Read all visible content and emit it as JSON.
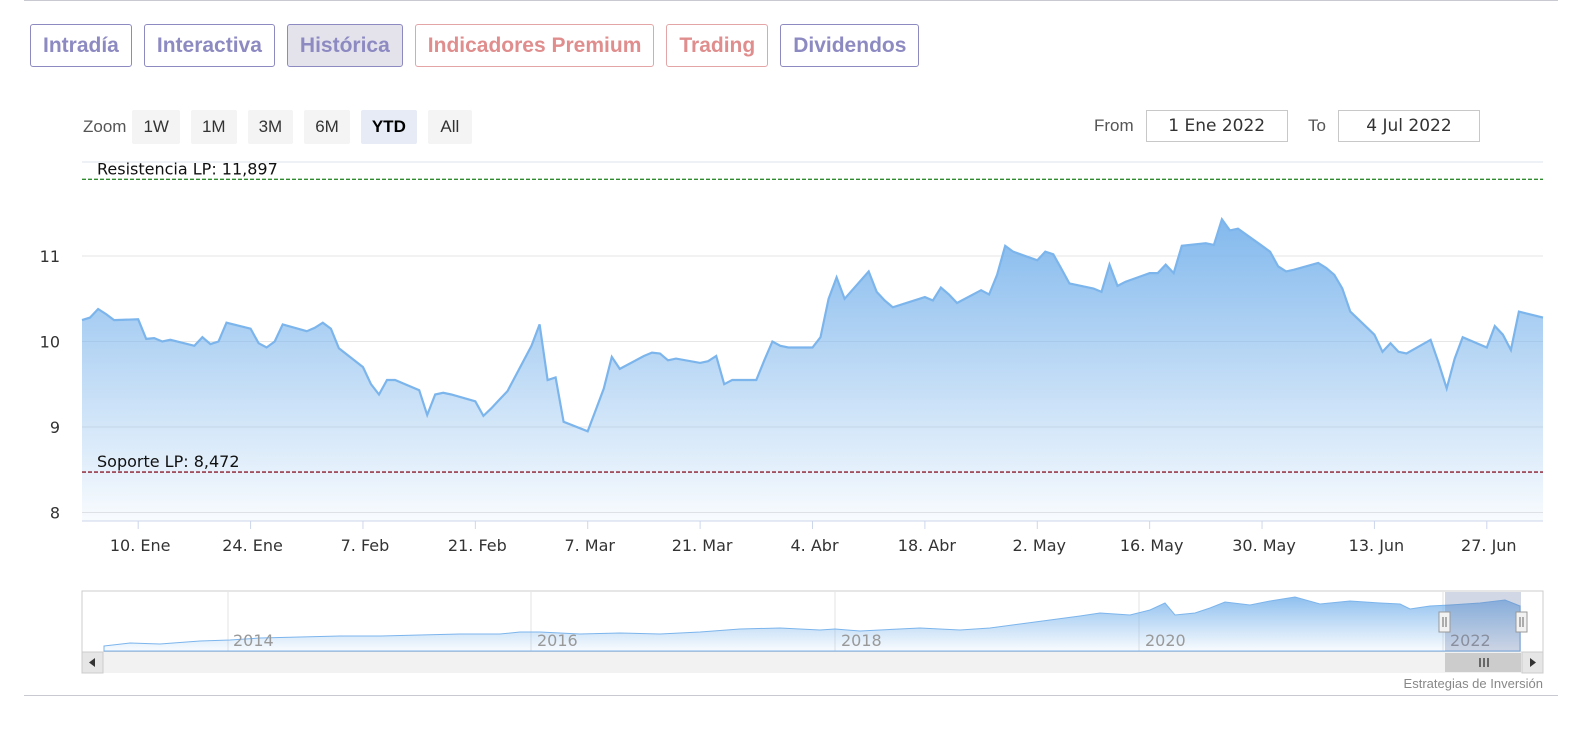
{
  "tabs": [
    {
      "label": "Intradía",
      "kind": "normal",
      "active": false
    },
    {
      "label": "Interactiva",
      "kind": "normal",
      "active": false
    },
    {
      "label": "Histórica",
      "kind": "normal",
      "active": true
    },
    {
      "label": "Indicadores Premium",
      "kind": "premium",
      "active": false
    },
    {
      "label": "Trading",
      "kind": "premium",
      "active": false
    },
    {
      "label": "Dividendos",
      "kind": "normal",
      "active": false
    }
  ],
  "zoom": {
    "label": "Zoom",
    "buttons": [
      "1W",
      "1M",
      "3M",
      "6M",
      "YTD",
      "All"
    ],
    "selected": "YTD"
  },
  "range": {
    "from_label": "From",
    "from_value": "1 Ene 2022",
    "to_label": "To",
    "to_value": "4 Jul 2022"
  },
  "navigator": {
    "years": [
      "2014",
      "2016",
      "2018",
      "2020",
      "2022"
    ],
    "scroll_left_icon": "triangle-left-icon",
    "scroll_right_icon": "triangle-right-icon",
    "handle_icon": "grip-lines-icon"
  },
  "credits": "Estrategias de Inversión",
  "chart_data": {
    "type": "area",
    "x_start": "2022-01-03",
    "x_end": "2022-07-04",
    "x_ticks": [
      {
        "date": "2022-01-10",
        "label": "10. Ene"
      },
      {
        "date": "2022-01-24",
        "label": "24. Ene"
      },
      {
        "date": "2022-02-07",
        "label": "7. Feb"
      },
      {
        "date": "2022-02-21",
        "label": "21. Feb"
      },
      {
        "date": "2022-03-07",
        "label": "7. Mar"
      },
      {
        "date": "2022-03-21",
        "label": "21. Mar"
      },
      {
        "date": "2022-04-04",
        "label": "4. Abr"
      },
      {
        "date": "2022-04-18",
        "label": "18. Abr"
      },
      {
        "date": "2022-05-02",
        "label": "2. May"
      },
      {
        "date": "2022-05-16",
        "label": "16. May"
      },
      {
        "date": "2022-05-30",
        "label": "30. May"
      },
      {
        "date": "2022-06-13",
        "label": "13. Jun"
      },
      {
        "date": "2022-06-27",
        "label": "27. Jun"
      }
    ],
    "y_ticks": [
      8,
      9,
      10,
      11
    ],
    "ylim": [
      7.9,
      12.1
    ],
    "grid": true,
    "reference_lines": [
      {
        "label": "Resistencia LP: 11,897",
        "value": 11.897,
        "color": "#2e8b2e"
      },
      {
        "label": "Soporte LP: 8,472",
        "value": 8.472,
        "color": "#8b1a2b"
      }
    ],
    "line_color": "#7cb5ec",
    "series": [
      {
        "points": [
          [
            "2022-01-03",
            10.25
          ],
          [
            "2022-01-04",
            10.28
          ],
          [
            "2022-01-05",
            10.38
          ],
          [
            "2022-01-06",
            10.32
          ],
          [
            "2022-01-07",
            10.25
          ],
          [
            "2022-01-10",
            10.26
          ],
          [
            "2022-01-11",
            10.03
          ],
          [
            "2022-01-12",
            10.04
          ],
          [
            "2022-01-13",
            10.0
          ],
          [
            "2022-01-14",
            10.02
          ],
          [
            "2022-01-17",
            9.95
          ],
          [
            "2022-01-18",
            10.05
          ],
          [
            "2022-01-19",
            9.97
          ],
          [
            "2022-01-20",
            10.0
          ],
          [
            "2022-01-21",
            10.22
          ],
          [
            "2022-01-24",
            10.15
          ],
          [
            "2022-01-25",
            9.98
          ],
          [
            "2022-01-26",
            9.93
          ],
          [
            "2022-01-27",
            10.0
          ],
          [
            "2022-01-28",
            10.2
          ],
          [
            "2022-01-31",
            10.12
          ],
          [
            "2022-02-01",
            10.16
          ],
          [
            "2022-02-02",
            10.22
          ],
          [
            "2022-02-03",
            10.15
          ],
          [
            "2022-02-04",
            9.92
          ],
          [
            "2022-02-07",
            9.7
          ],
          [
            "2022-02-08",
            9.5
          ],
          [
            "2022-02-09",
            9.38
          ],
          [
            "2022-02-10",
            9.55
          ],
          [
            "2022-02-11",
            9.55
          ],
          [
            "2022-02-14",
            9.43
          ],
          [
            "2022-02-15",
            9.14
          ],
          [
            "2022-02-16",
            9.38
          ],
          [
            "2022-02-17",
            9.4
          ],
          [
            "2022-02-18",
            9.38
          ],
          [
            "2022-02-21",
            9.3
          ],
          [
            "2022-02-22",
            9.13
          ],
          [
            "2022-02-23",
            9.22
          ],
          [
            "2022-02-24",
            9.32
          ],
          [
            "2022-02-25",
            9.42
          ],
          [
            "2022-02-28",
            9.95
          ],
          [
            "2022-03-01",
            10.2
          ],
          [
            "2022-03-02",
            9.55
          ],
          [
            "2022-03-03",
            9.58
          ],
          [
            "2022-03-04",
            9.06
          ],
          [
            "2022-03-07",
            8.95
          ],
          [
            "2022-03-08",
            9.2
          ],
          [
            "2022-03-09",
            9.45
          ],
          [
            "2022-03-10",
            9.82
          ],
          [
            "2022-03-11",
            9.68
          ],
          [
            "2022-03-14",
            9.83
          ],
          [
            "2022-03-15",
            9.87
          ],
          [
            "2022-03-16",
            9.86
          ],
          [
            "2022-03-17",
            9.78
          ],
          [
            "2022-03-18",
            9.8
          ],
          [
            "2022-03-21",
            9.75
          ],
          [
            "2022-03-22",
            9.77
          ],
          [
            "2022-03-23",
            9.83
          ],
          [
            "2022-03-24",
            9.5
          ],
          [
            "2022-03-25",
            9.55
          ],
          [
            "2022-03-28",
            9.55
          ],
          [
            "2022-03-29",
            9.78
          ],
          [
            "2022-03-30",
            10.0
          ],
          [
            "2022-03-31",
            9.95
          ],
          [
            "2022-04-01",
            9.93
          ],
          [
            "2022-04-04",
            9.93
          ],
          [
            "2022-04-05",
            10.05
          ],
          [
            "2022-04-06",
            10.5
          ],
          [
            "2022-04-07",
            10.75
          ],
          [
            "2022-04-08",
            10.5
          ],
          [
            "2022-04-11",
            10.82
          ],
          [
            "2022-04-12",
            10.58
          ],
          [
            "2022-04-13",
            10.48
          ],
          [
            "2022-04-14",
            10.4
          ],
          [
            "2022-04-18",
            10.52
          ],
          [
            "2022-04-19",
            10.48
          ],
          [
            "2022-04-20",
            10.63
          ],
          [
            "2022-04-21",
            10.55
          ],
          [
            "2022-04-22",
            10.45
          ],
          [
            "2022-04-25",
            10.6
          ],
          [
            "2022-04-26",
            10.55
          ],
          [
            "2022-04-27",
            10.78
          ],
          [
            "2022-04-28",
            11.12
          ],
          [
            "2022-04-29",
            11.05
          ],
          [
            "2022-05-02",
            10.95
          ],
          [
            "2022-05-03",
            11.05
          ],
          [
            "2022-05-04",
            11.02
          ],
          [
            "2022-05-05",
            10.85
          ],
          [
            "2022-05-06",
            10.68
          ],
          [
            "2022-05-09",
            10.62
          ],
          [
            "2022-05-10",
            10.58
          ],
          [
            "2022-05-11",
            10.9
          ],
          [
            "2022-05-12",
            10.65
          ],
          [
            "2022-05-13",
            10.7
          ],
          [
            "2022-05-16",
            10.8
          ],
          [
            "2022-05-17",
            10.8
          ],
          [
            "2022-05-18",
            10.9
          ],
          [
            "2022-05-19",
            10.8
          ],
          [
            "2022-05-20",
            11.12
          ],
          [
            "2022-05-23",
            11.15
          ],
          [
            "2022-05-24",
            11.13
          ],
          [
            "2022-05-25",
            11.43
          ],
          [
            "2022-05-26",
            11.3
          ],
          [
            "2022-05-27",
            11.32
          ],
          [
            "2022-05-30",
            11.12
          ],
          [
            "2022-05-31",
            11.05
          ],
          [
            "2022-06-01",
            10.88
          ],
          [
            "2022-06-02",
            10.82
          ],
          [
            "2022-06-03",
            10.84
          ],
          [
            "2022-06-06",
            10.92
          ],
          [
            "2022-06-07",
            10.86
          ],
          [
            "2022-06-08",
            10.78
          ],
          [
            "2022-06-09",
            10.62
          ],
          [
            "2022-06-10",
            10.35
          ],
          [
            "2022-06-13",
            10.08
          ],
          [
            "2022-06-14",
            9.88
          ],
          [
            "2022-06-15",
            9.98
          ],
          [
            "2022-06-16",
            9.88
          ],
          [
            "2022-06-17",
            9.86
          ],
          [
            "2022-06-20",
            10.02
          ],
          [
            "2022-06-21",
            9.75
          ],
          [
            "2022-06-22",
            9.45
          ],
          [
            "2022-06-23",
            9.8
          ],
          [
            "2022-06-24",
            10.05
          ],
          [
            "2022-06-27",
            9.93
          ],
          [
            "2022-06-28",
            10.18
          ],
          [
            "2022-06-29",
            10.08
          ],
          [
            "2022-06-30",
            9.9
          ],
          [
            "2022-07-01",
            10.35
          ],
          [
            "2022-07-04",
            10.28
          ]
        ]
      }
    ]
  }
}
